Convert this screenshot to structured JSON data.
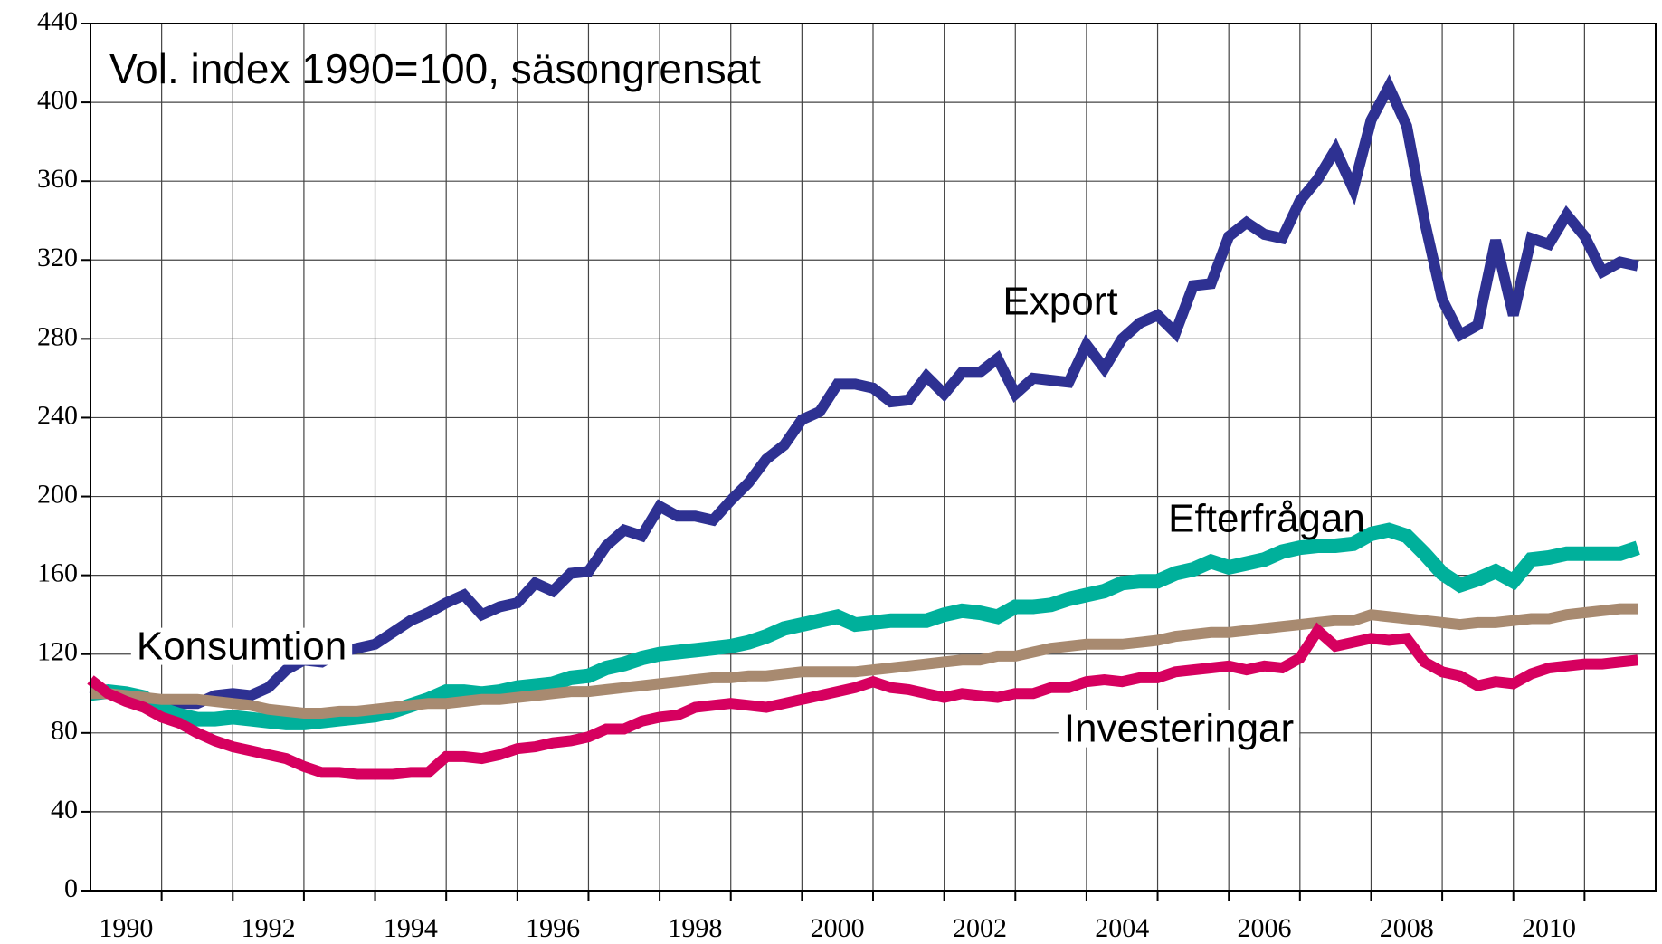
{
  "chart_data": {
    "type": "line",
    "subtitle": "Vol. index 1990=100, säsongrensat",
    "x": [
      1990,
      1990.25,
      1990.5,
      1990.75,
      1991,
      1991.25,
      1991.5,
      1991.75,
      1992,
      1992.25,
      1992.5,
      1992.75,
      1993,
      1993.25,
      1993.5,
      1993.75,
      1994,
      1994.25,
      1994.5,
      1994.75,
      1995,
      1995.25,
      1995.5,
      1995.75,
      1996,
      1996.25,
      1996.5,
      1996.75,
      1997,
      1997.25,
      1997.5,
      1997.75,
      1998,
      1998.25,
      1998.5,
      1998.75,
      1999,
      1999.25,
      1999.5,
      1999.75,
      2000,
      2000.25,
      2000.5,
      2000.75,
      2001,
      2001.25,
      2001.5,
      2001.75,
      2002,
      2002.25,
      2002.5,
      2002.75,
      2003,
      2003.25,
      2003.5,
      2003.75,
      2004,
      2004.25,
      2004.5,
      2004.75,
      2005,
      2005.25,
      2005.5,
      2005.75,
      2006,
      2006.25,
      2006.5,
      2006.75,
      2007,
      2007.25,
      2007.5,
      2007.75,
      2008,
      2008.25,
      2008.5,
      2008.75,
      2009,
      2009.25,
      2009.5,
      2009.75,
      2010,
      2010.25,
      2010.5,
      2010.75,
      2011,
      2011.25,
      2011.5,
      2011.75
    ],
    "series": [
      {
        "name": "Export",
        "color": "#2e3192",
        "width": 12,
        "values": [
          103,
          101,
          99,
          97,
          91,
          95,
          95,
          99,
          100,
          99,
          103,
          112,
          117,
          116,
          121,
          123,
          125,
          131,
          137,
          141,
          146,
          150,
          140,
          144,
          146,
          156,
          152,
          161,
          162,
          175,
          183,
          180,
          195,
          190,
          190,
          188,
          198,
          207,
          219,
          226,
          239,
          243,
          257,
          257,
          255,
          248,
          249,
          261,
          252,
          263,
          263,
          270,
          252,
          260,
          259,
          258,
          277,
          265,
          280,
          288,
          292,
          283,
          307,
          308,
          332,
          339,
          333,
          331,
          350,
          361,
          376,
          356,
          391,
          408,
          388,
          340,
          300,
          282,
          287,
          330,
          292,
          331,
          328,
          343,
          332,
          314,
          319,
          317
        ]
      },
      {
        "name": "Efterfrågan",
        "color": "#00b09b",
        "width": 16,
        "values": [
          100,
          101,
          100,
          98,
          92,
          89,
          87,
          87,
          88,
          87,
          86,
          85,
          85,
          86,
          87,
          88,
          89,
          91,
          94,
          97,
          101,
          101,
          100,
          101,
          103,
          104,
          105,
          108,
          109,
          113,
          115,
          118,
          120,
          121,
          122,
          123,
          124,
          126,
          129,
          133,
          135,
          137,
          139,
          135,
          136,
          137,
          137,
          137,
          140,
          142,
          141,
          139,
          144,
          144,
          145,
          148,
          150,
          152,
          156,
          157,
          157,
          161,
          163,
          167,
          164,
          166,
          168,
          172,
          174,
          175,
          175,
          176,
          181,
          183,
          180,
          171,
          161,
          155,
          158,
          162,
          157,
          168,
          169,
          171,
          171,
          171,
          171,
          174
        ]
      },
      {
        "name": "Konsumtion",
        "color": "#a88a70",
        "width": 12,
        "values": [
          100,
          100,
          99,
          98,
          97,
          97,
          97,
          96,
          95,
          94,
          92,
          91,
          90,
          90,
          91,
          91,
          92,
          93,
          94,
          95,
          95,
          96,
          97,
          97,
          98,
          99,
          100,
          101,
          101,
          102,
          103,
          104,
          105,
          106,
          107,
          108,
          108,
          109,
          109,
          110,
          111,
          111,
          111,
          111,
          112,
          113,
          114,
          115,
          116,
          117,
          117,
          119,
          119,
          121,
          123,
          124,
          125,
          125,
          125,
          126,
          127,
          129,
          130,
          131,
          131,
          132,
          133,
          134,
          135,
          136,
          137,
          137,
          140,
          139,
          138,
          137,
          136,
          135,
          136,
          136,
          137,
          138,
          138,
          140,
          141,
          142,
          143,
          143
        ]
      },
      {
        "name": "Investeringar",
        "color": "#d6005f",
        "width": 12,
        "values": [
          107,
          100,
          96,
          93,
          88,
          85,
          80,
          76,
          73,
          71,
          69,
          67,
          63,
          60,
          60,
          59,
          59,
          59,
          60,
          60,
          68,
          68,
          67,
          69,
          72,
          73,
          75,
          76,
          78,
          82,
          82,
          86,
          88,
          89,
          93,
          94,
          95,
          94,
          93,
          95,
          97,
          99,
          101,
          103,
          106,
          103,
          102,
          100,
          98,
          100,
          99,
          98,
          100,
          100,
          103,
          103,
          106,
          107,
          106,
          108,
          108,
          111,
          112,
          113,
          114,
          112,
          114,
          113,
          118,
          132,
          124,
          126,
          128,
          127,
          128,
          116,
          111,
          109,
          104,
          106,
          105,
          110,
          113,
          114,
          115,
          115,
          116,
          117
        ]
      }
    ],
    "xlim": [
      1990,
      2012
    ],
    "xticks": [
      1990,
      1992,
      1994,
      1996,
      1998,
      2000,
      2002,
      2004,
      2006,
      2008,
      2010
    ],
    "xgrid": [
      1991,
      1992,
      1993,
      1994,
      1995,
      1996,
      1997,
      1998,
      1999,
      2000,
      2001,
      2002,
      2003,
      2004,
      2005,
      2006,
      2007,
      2008,
      2009,
      2010,
      2011
    ],
    "ylim": [
      0,
      440
    ],
    "yticks": [
      0,
      40,
      80,
      120,
      160,
      200,
      240,
      280,
      320,
      360,
      400,
      440
    ],
    "grid": true
  }
}
